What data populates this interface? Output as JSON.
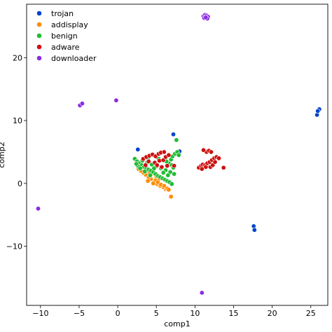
{
  "chart_data": {
    "type": "scatter",
    "xlabel": "comp1",
    "ylabel": "comp2",
    "xlim": [
      -11.8,
      27.2
    ],
    "ylim": [
      -19.4,
      28.5
    ],
    "xticks": [
      -10,
      -5,
      0,
      5,
      10,
      15,
      20,
      25
    ],
    "yticks": [
      -10,
      0,
      10,
      20
    ],
    "xtick_labels": [
      "−10",
      "−5",
      "0",
      "5",
      "10",
      "15",
      "20",
      "25"
    ],
    "ytick_labels": [
      "−10",
      "0",
      "10",
      "20"
    ],
    "grid": false,
    "legend_position": "top-left",
    "series": [
      {
        "name": "trojan",
        "color": "#0044cc",
        "points": [
          [
            25.8,
            10.9
          ],
          [
            26.0,
            11.6
          ],
          [
            26.1,
            11.8
          ],
          [
            25.9,
            11.5
          ],
          [
            17.6,
            -6.8
          ],
          [
            17.7,
            -7.4
          ],
          [
            7.2,
            7.8
          ],
          [
            7.6,
            4.8
          ],
          [
            2.6,
            5.4
          ],
          [
            8.0,
            5.1
          ]
        ]
      },
      {
        "name": "addisplay",
        "color": "#ff8c00",
        "points": [
          [
            6.9,
            -2.1
          ],
          [
            6.2,
            -0.9
          ],
          [
            5.9,
            -0.6
          ],
          [
            5.5,
            -0.4
          ],
          [
            5.1,
            -0.1
          ],
          [
            4.7,
            0.3
          ],
          [
            4.3,
            0.7
          ],
          [
            4.0,
            1.0
          ],
          [
            3.6,
            1.4
          ],
          [
            3.3,
            1.7
          ],
          [
            3.0,
            2.0
          ],
          [
            2.7,
            2.3
          ],
          [
            4.9,
            0.5
          ],
          [
            5.2,
            0.2
          ],
          [
            5.6,
            -0.2
          ],
          [
            6.0,
            -0.4
          ],
          [
            6.4,
            -0.8
          ],
          [
            5.0,
            1.1
          ],
          [
            4.5,
            1.6
          ],
          [
            4.1,
            1.8
          ],
          [
            3.7,
            2.2
          ],
          [
            5.4,
            0.8
          ],
          [
            6.6,
            -1.0
          ],
          [
            4.6,
            0.0
          ],
          [
            3.9,
            0.4
          ]
        ]
      },
      {
        "name": "benign",
        "color": "#22bb33",
        "points": [
          [
            2.2,
            3.9
          ],
          [
            2.5,
            3.5
          ],
          [
            2.8,
            3.2
          ],
          [
            3.1,
            2.9
          ],
          [
            3.4,
            2.6
          ],
          [
            3.7,
            2.4
          ],
          [
            4.0,
            2.2
          ],
          [
            4.3,
            2.0
          ],
          [
            4.6,
            1.8
          ],
          [
            4.9,
            1.5
          ],
          [
            5.2,
            1.2
          ],
          [
            5.5,
            1.0
          ],
          [
            5.8,
            0.8
          ],
          [
            6.1,
            0.6
          ],
          [
            6.4,
            0.4
          ],
          [
            6.7,
            0.2
          ],
          [
            7.0,
            -0.1
          ],
          [
            3.2,
            3.6
          ],
          [
            3.8,
            3.3
          ],
          [
            4.4,
            3.0
          ],
          [
            5.0,
            2.7
          ],
          [
            5.6,
            2.4
          ],
          [
            6.2,
            2.1
          ],
          [
            6.8,
            1.8
          ],
          [
            7.3,
            1.5
          ],
          [
            6.6,
            3.2
          ],
          [
            6.9,
            3.8
          ],
          [
            7.1,
            4.3
          ],
          [
            7.4,
            4.7
          ],
          [
            7.7,
            5.0
          ],
          [
            7.0,
            2.9
          ],
          [
            6.3,
            3.5
          ],
          [
            5.3,
            3.9
          ],
          [
            2.6,
            2.8
          ],
          [
            2.9,
            2.4
          ],
          [
            3.5,
            1.9
          ],
          [
            4.2,
            1.3
          ],
          [
            7.6,
            6.9
          ],
          [
            7.9,
            4.5
          ],
          [
            7.2,
            2.5
          ],
          [
            5.9,
            1.7
          ],
          [
            4.7,
            2.4
          ],
          [
            3.9,
            4.0
          ],
          [
            2.4,
            3.1
          ],
          [
            6.5,
            1.3
          ]
        ]
      },
      {
        "name": "adware",
        "color": "#cc1111",
        "points": [
          [
            3.3,
            3.9
          ],
          [
            3.7,
            4.2
          ],
          [
            4.1,
            4.4
          ],
          [
            4.5,
            4.6
          ],
          [
            4.9,
            4.3
          ],
          [
            5.3,
            4.7
          ],
          [
            5.6,
            4.9
          ],
          [
            6.0,
            5.0
          ],
          [
            5.4,
            3.6
          ],
          [
            4.8,
            3.3
          ],
          [
            5.9,
            3.7
          ],
          [
            6.2,
            4.2
          ],
          [
            6.6,
            4.5
          ],
          [
            4.0,
            3.5
          ],
          [
            5.1,
            2.9
          ],
          [
            5.7,
            2.6
          ],
          [
            6.4,
            2.8
          ],
          [
            7.3,
            2.8
          ],
          [
            3.6,
            2.9
          ],
          [
            10.5,
            2.5
          ],
          [
            10.8,
            2.8
          ],
          [
            11.0,
            3.0
          ],
          [
            11.3,
            2.9
          ],
          [
            11.6,
            3.2
          ],
          [
            11.9,
            3.4
          ],
          [
            12.2,
            3.7
          ],
          [
            12.5,
            4.0
          ],
          [
            12.8,
            4.2
          ],
          [
            13.1,
            4.0
          ],
          [
            12.0,
            2.6
          ],
          [
            12.3,
            2.9
          ],
          [
            11.5,
            5.0
          ],
          [
            11.8,
            5.2
          ],
          [
            12.1,
            5.0
          ],
          [
            11.1,
            5.3
          ],
          [
            10.9,
            2.3
          ],
          [
            12.6,
            3.4
          ],
          [
            13.7,
            2.5
          ],
          [
            11.4,
            2.6
          ]
        ]
      },
      {
        "name": "downloader",
        "color": "#8a2be2",
        "points": [
          [
            11.1,
            26.6
          ],
          [
            11.3,
            26.8
          ],
          [
            11.5,
            26.7
          ],
          [
            11.7,
            26.5
          ],
          [
            11.2,
            26.3
          ],
          [
            11.6,
            26.2
          ],
          [
            11.4,
            26.4
          ],
          [
            -4.9,
            12.4
          ],
          [
            -4.6,
            12.7
          ],
          [
            -0.2,
            13.2
          ],
          [
            -10.3,
            -4.0
          ],
          [
            10.9,
            -17.4
          ]
        ]
      }
    ]
  }
}
